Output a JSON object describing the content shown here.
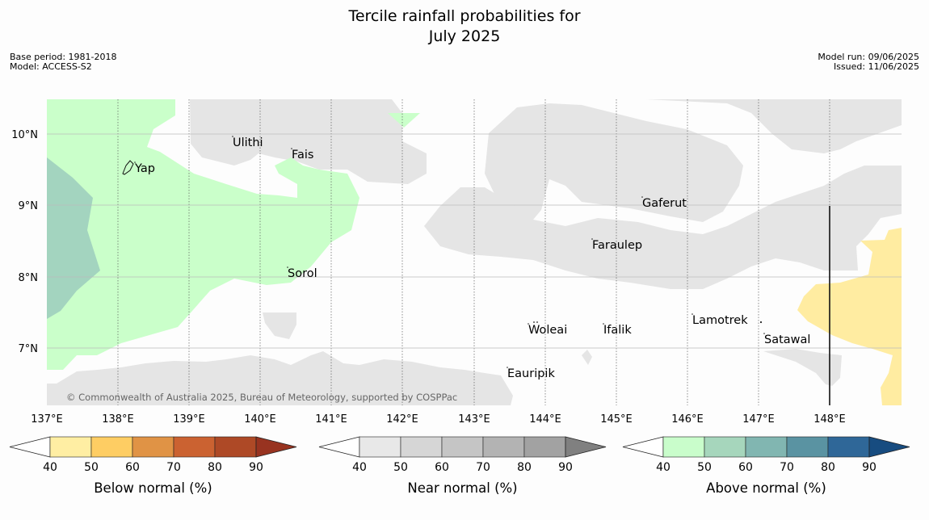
{
  "title_line1": "Tercile rainfall probabilities for",
  "title_line2": "July 2025",
  "meta_left": {
    "base_period": "Base period: 1981-2018",
    "model": "Model: ACCESS-S2"
  },
  "meta_right": {
    "model_run": "Model run: 09/06/2025",
    "issued": "Issued: 11/06/2025"
  },
  "map": {
    "copyright": "© Commonwealth of Australia 2025, Bureau of Meteorology, supported by COSPPac",
    "lon_ticks": [
      "137°E",
      "138°E",
      "139°E",
      "140°E",
      "141°E",
      "142°E",
      "143°E",
      "144°E",
      "145°E",
      "146°E",
      "147°E",
      "148°E"
    ],
    "lat_ticks": [
      "10°N",
      "9°N",
      "8°N",
      "7°N"
    ],
    "places": [
      {
        "name": "Ulithi"
      },
      {
        "name": "Fais"
      },
      {
        "name": "Yap"
      },
      {
        "name": "Gaferut"
      },
      {
        "name": "Faraulep"
      },
      {
        "name": "Sorol"
      },
      {
        "name": "Woleai"
      },
      {
        "name": "Ifalik"
      },
      {
        "name": "Lamotrek"
      },
      {
        "name": "Satawal"
      },
      {
        "name": "Eauripik"
      }
    ],
    "colors": {
      "near_normal": "#e5e5e5",
      "above_normal_light": "#caffca",
      "above_normal_mid": "#a3d4bf",
      "below_normal_light": "#ffeca1"
    }
  },
  "colorbars": [
    {
      "label": "Below normal (%)",
      "ticks": [
        "40",
        "50",
        "60",
        "70",
        "80",
        "90"
      ],
      "colors": [
        "#ffeea3",
        "#fecd63",
        "#e09345",
        "#cb6231",
        "#ae4926",
        "#983320"
      ]
    },
    {
      "label": "Near normal (%)",
      "ticks": [
        "40",
        "50",
        "60",
        "70",
        "80",
        "90"
      ],
      "colors": [
        "#e8e8e8",
        "#d6d6d6",
        "#c5c5c5",
        "#b3b3b3",
        "#a2a2a2",
        "#808080"
      ]
    },
    {
      "label": "Above normal (%)",
      "ticks": [
        "40",
        "50",
        "60",
        "70",
        "80",
        "90"
      ],
      "colors": [
        "#c9fdcb",
        "#a6d6bc",
        "#81b6b1",
        "#5a93a2",
        "#2f6798",
        "#174c80"
      ]
    }
  ]
}
